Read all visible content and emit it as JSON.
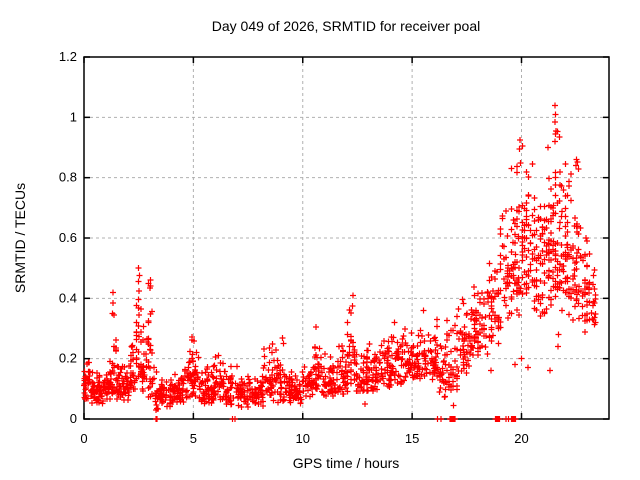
{
  "chart_data": {
    "type": "scatter",
    "title": "Day 049 of 2026, SRMTID for receiver poal",
    "xlabel": "GPS time / hours",
    "ylabel": "SRMTID / TECUs",
    "xlim": [
      0,
      24
    ],
    "ylim": [
      0,
      1.2
    ],
    "xtick_values": [
      0,
      5,
      10,
      15,
      20
    ],
    "xtick_labels": [
      "0",
      "5",
      "10",
      "15",
      "20"
    ],
    "ytick_values": [
      0,
      0.2,
      0.4,
      0.6,
      0.8,
      1,
      1.2
    ],
    "ytick_labels": [
      "0",
      "0.2",
      "0.4",
      "0.6",
      "0.8",
      "1",
      "1.2"
    ],
    "grid": true,
    "grid_color": "#b0b0b0",
    "marker": "+",
    "marker_color": "#ff0000",
    "series_name": "SRMTID",
    "profile_fields": [
      "x_start_hours",
      "x_end_hours",
      "point_count",
      "y_min_tecus",
      "y_max_tecus",
      "skew_exponent"
    ],
    "density_profile": [
      [
        0.0,
        0.3,
        30,
        0.06,
        0.23,
        1.6
      ],
      [
        0.3,
        0.9,
        55,
        0.05,
        0.18,
        1.5
      ],
      [
        0.9,
        1.25,
        30,
        0.06,
        0.2,
        1.5
      ],
      [
        1.25,
        1.5,
        22,
        0.08,
        0.42,
        2.2
      ],
      [
        1.5,
        2.1,
        55,
        0.06,
        0.2,
        1.5
      ],
      [
        2.1,
        2.35,
        22,
        0.08,
        0.28,
        1.6
      ],
      [
        2.35,
        2.65,
        30,
        0.12,
        0.5,
        1.6
      ],
      [
        2.65,
        2.9,
        22,
        0.08,
        0.33,
        1.6
      ],
      [
        2.9,
        3.25,
        28,
        0.06,
        0.46,
        1.8
      ],
      [
        3.25,
        3.45,
        14,
        0.01,
        0.16,
        1.3
      ],
      [
        3.45,
        4.1,
        55,
        0.04,
        0.14,
        1.4
      ],
      [
        4.1,
        4.6,
        40,
        0.05,
        0.17,
        1.5
      ],
      [
        4.6,
        5.25,
        55,
        0.07,
        0.3,
        1.8
      ],
      [
        5.25,
        5.9,
        50,
        0.05,
        0.2,
        1.6
      ],
      [
        5.9,
        6.45,
        45,
        0.06,
        0.24,
        1.7
      ],
      [
        6.45,
        7.1,
        45,
        0.04,
        0.18,
        1.5
      ],
      [
        7.1,
        8.2,
        85,
        0.04,
        0.16,
        1.5
      ],
      [
        8.2,
        8.65,
        32,
        0.06,
        0.27,
        1.7
      ],
      [
        8.65,
        9.2,
        40,
        0.05,
        0.28,
        1.8
      ],
      [
        9.2,
        10.0,
        60,
        0.05,
        0.17,
        1.5
      ],
      [
        10.0,
        10.45,
        32,
        0.07,
        0.2,
        1.5
      ],
      [
        10.45,
        10.85,
        30,
        0.09,
        0.31,
        1.7
      ],
      [
        10.85,
        11.5,
        48,
        0.07,
        0.22,
        1.5
      ],
      [
        11.5,
        12.0,
        38,
        0.08,
        0.28,
        1.6
      ],
      [
        12.0,
        12.5,
        38,
        0.09,
        0.42,
        2.0
      ],
      [
        12.5,
        13.5,
        75,
        0.09,
        0.26,
        1.5
      ],
      [
        13.5,
        14.5,
        75,
        0.1,
        0.3,
        1.6
      ],
      [
        14.5,
        15.5,
        75,
        0.12,
        0.33,
        1.6
      ],
      [
        15.5,
        16.2,
        52,
        0.13,
        0.35,
        1.6
      ],
      [
        16.2,
        16.55,
        24,
        0.05,
        0.3,
        1.4
      ],
      [
        16.55,
        17.1,
        38,
        0.06,
        0.36,
        1.4
      ],
      [
        17.1,
        17.8,
        52,
        0.15,
        0.43,
        1.4
      ],
      [
        17.8,
        18.5,
        52,
        0.2,
        0.5,
        1.4
      ],
      [
        18.5,
        19.0,
        38,
        0.24,
        0.56,
        1.4
      ],
      [
        19.0,
        19.5,
        38,
        0.28,
        0.78,
        1.6
      ],
      [
        19.5,
        20.0,
        50,
        0.33,
        0.93,
        1.5
      ],
      [
        20.0,
        20.55,
        55,
        0.38,
        0.92,
        1.4
      ],
      [
        20.55,
        21.1,
        55,
        0.34,
        0.82,
        1.4
      ],
      [
        21.1,
        21.5,
        45,
        0.36,
        0.88,
        1.4
      ],
      [
        21.5,
        21.8,
        40,
        0.38,
        1.05,
        1.7
      ],
      [
        21.8,
        22.3,
        50,
        0.34,
        0.9,
        1.5
      ],
      [
        22.3,
        22.75,
        40,
        0.3,
        0.87,
        1.5
      ],
      [
        22.75,
        23.15,
        32,
        0.27,
        0.62,
        1.4
      ],
      [
        23.15,
        23.4,
        16,
        0.3,
        0.52,
        1.4
      ]
    ],
    "feature_points": [
      [
        2.5,
        0.5
      ],
      [
        2.53,
        0.475
      ],
      [
        2.48,
        0.455
      ],
      [
        3.05,
        0.46
      ],
      [
        3.02,
        0.435
      ],
      [
        1.32,
        0.42
      ],
      [
        1.33,
        0.385
      ],
      [
        1.3,
        0.35
      ],
      [
        12.3,
        0.41
      ],
      [
        12.28,
        0.375
      ],
      [
        15.52,
        0.36
      ],
      [
        14.2,
        0.32
      ],
      [
        10.6,
        0.305
      ],
      [
        19.93,
        0.925
      ],
      [
        19.9,
        0.895
      ],
      [
        20.05,
        0.905
      ],
      [
        21.53,
        1.04
      ],
      [
        21.56,
        1.01
      ],
      [
        21.54,
        0.985
      ],
      [
        21.57,
        0.955
      ],
      [
        21.52,
        0.92
      ],
      [
        21.2,
        0.9
      ],
      [
        22.52,
        0.86
      ],
      [
        22.55,
        0.852
      ],
      [
        22.5,
        0.84
      ],
      [
        22.95,
        0.6
      ],
      [
        23.0,
        0.59
      ],
      [
        19.7,
        0.18
      ],
      [
        20.0,
        0.2
      ],
      [
        21.66,
        0.24
      ],
      [
        21.7,
        0.28
      ],
      [
        20.3,
        0.17
      ],
      [
        21.3,
        0.16
      ],
      [
        12.85,
        0.05
      ],
      [
        16.9,
        0.045
      ],
      [
        18.6,
        0.16
      ]
    ],
    "zero_value_points_hours": [
      3.28,
      3.33,
      6.78,
      6.9,
      16.17,
      16.32,
      16.72,
      16.75,
      16.78,
      16.81,
      16.84,
      16.87,
      16.9,
      16.93,
      16.96,
      18.8,
      18.84,
      18.88,
      18.91,
      18.94,
      18.97,
      19.0,
      19.28,
      19.4,
      19.55,
      19.58,
      19.61,
      19.64,
      19.67,
      19.7,
      19.73
    ],
    "max_point": {
      "x_hours": 21.53,
      "y_tecus": 1.04
    },
    "legend": "none"
  }
}
